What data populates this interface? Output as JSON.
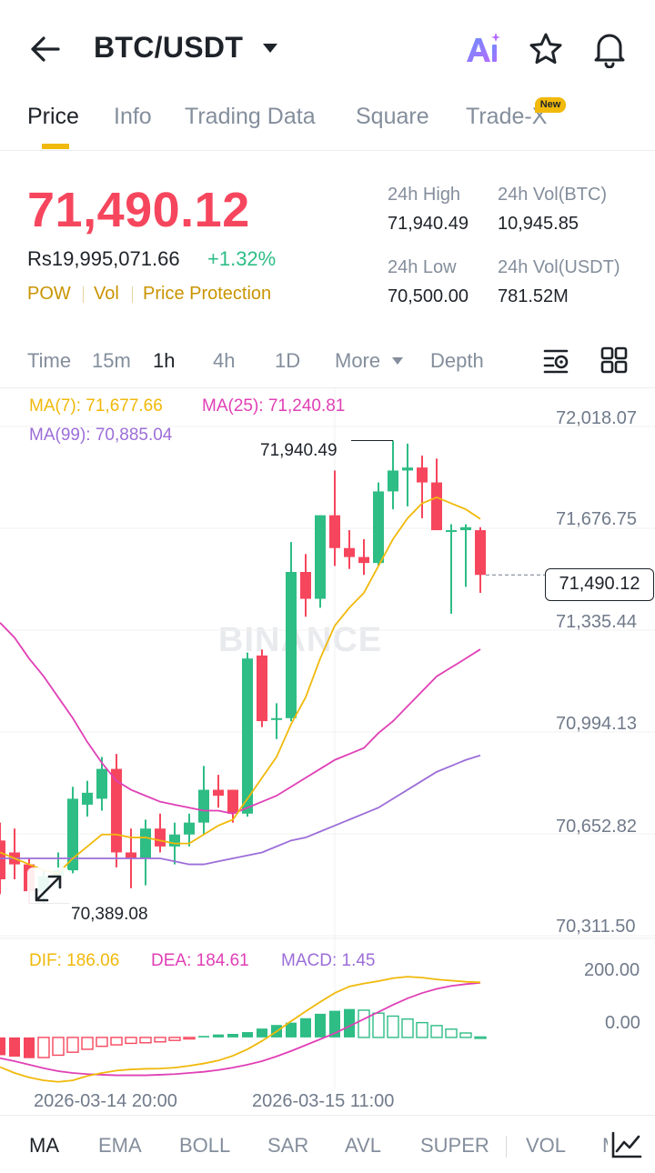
{
  "header": {
    "pair": "BTC/USDT",
    "icons": [
      "back-arrow-icon",
      "caret-down-icon",
      "ai-icon",
      "star-icon",
      "bell-icon"
    ]
  },
  "tabs": [
    {
      "label": "Price",
      "active": true
    },
    {
      "label": "Info"
    },
    {
      "label": "Trading Data"
    },
    {
      "label": "Square"
    },
    {
      "label": "Trade-X",
      "badge": "New"
    }
  ],
  "summary": {
    "last_price": "71,490.12",
    "fiat_price": "Rs19,995,071.66",
    "change": "+1.32%",
    "tags": [
      "POW",
      "Vol",
      "Price Protection"
    ],
    "high_label": "24h High",
    "high": "71,940.49",
    "vol_btc_label": "24h Vol(BTC)",
    "vol_btc": "10,945.85",
    "low_label": "24h Low",
    "low": "70,500.00",
    "vol_usdt_label": "24h Vol(USDT)",
    "vol_usdt": "781.52M"
  },
  "intervals": [
    {
      "label": "Time"
    },
    {
      "label": "15m"
    },
    {
      "label": "1h",
      "active": true
    },
    {
      "label": "4h"
    },
    {
      "label": "1D"
    },
    {
      "label": "More"
    },
    {
      "label": "Depth"
    }
  ],
  "ma_legend": {
    "ma7": "MA(7): 71,677.66",
    "ma25": "MA(25): 71,240.81",
    "ma99": "MA(99): 70,885.04"
  },
  "macd_legend": {
    "dif": "DIF: 186.06",
    "dea": "DEA: 184.61",
    "macd": "MACD: 1.45"
  },
  "price_axis": [
    "72,018.07",
    "71,676.75",
    "71,335.44",
    "70,994.13",
    "70,652.82",
    "70,311.50"
  ],
  "macd_axis": [
    "200.00",
    "0.00"
  ],
  "time_axis": [
    "2026-03-14 20:00",
    "2026-03-15 11:00"
  ],
  "current_price_label": "71,490.12",
  "max_label": "71,940.49",
  "min_label": "70,389.08",
  "watermark": "BINANCE",
  "indicators": [
    {
      "label": "MA",
      "active": true
    },
    {
      "label": "EMA"
    },
    {
      "label": "BOLL"
    },
    {
      "label": "SAR"
    },
    {
      "label": "AVL"
    },
    {
      "label": "SUPER"
    },
    {
      "label": "VOL"
    },
    {
      "label": "M"
    }
  ],
  "colors": {
    "up": "#2ebd85",
    "down": "#f6465d",
    "ma7": "#f0b90b",
    "ma25": "#e040b5",
    "ma99": "#9c6ed8",
    "accent": "#f0b90b"
  },
  "chart_data": {
    "type": "candlestick",
    "interval": "1h",
    "ylim": [
      70311.5,
      72018.07
    ],
    "candles": [
      {
        "o": 70600,
        "h": 70660,
        "l": 70420,
        "c": 70470
      },
      {
        "o": 70560,
        "h": 70640,
        "l": 70470,
        "c": 70520
      },
      {
        "o": 70520,
        "h": 70540,
        "l": 70389.08,
        "c": 70430
      },
      {
        "o": 70430,
        "h": 70500,
        "l": 70390,
        "c": 70480
      },
      {
        "o": 70480,
        "h": 70560,
        "l": 70440,
        "c": 70500
      },
      {
        "o": 70500,
        "h": 70780,
        "l": 70490,
        "c": 70740
      },
      {
        "o": 70720,
        "h": 70800,
        "l": 70680,
        "c": 70760
      },
      {
        "o": 70740,
        "h": 70880,
        "l": 70700,
        "c": 70840
      },
      {
        "o": 70840,
        "h": 70890,
        "l": 70510,
        "c": 70560
      },
      {
        "o": 70560,
        "h": 70640,
        "l": 70440,
        "c": 70540
      },
      {
        "o": 70540,
        "h": 70670,
        "l": 70450,
        "c": 70640
      },
      {
        "o": 70640,
        "h": 70690,
        "l": 70560,
        "c": 70580
      },
      {
        "o": 70580,
        "h": 70660,
        "l": 70520,
        "c": 70620
      },
      {
        "o": 70620,
        "h": 70690,
        "l": 70580,
        "c": 70660
      },
      {
        "o": 70660,
        "h": 70850,
        "l": 70620,
        "c": 70770
      },
      {
        "o": 70770,
        "h": 70820,
        "l": 70710,
        "c": 70750
      },
      {
        "o": 70770,
        "h": 70770,
        "l": 70660,
        "c": 70690
      },
      {
        "o": 70690,
        "h": 71230,
        "l": 70680,
        "c": 71210
      },
      {
        "o": 71220,
        "h": 71240,
        "l": 70980,
        "c": 71000
      },
      {
        "o": 71010,
        "h": 71060,
        "l": 70940,
        "c": 71010
      },
      {
        "o": 71010,
        "h": 71600,
        "l": 71000,
        "c": 71500
      },
      {
        "o": 71500,
        "h": 71560,
        "l": 71350,
        "c": 71410
      },
      {
        "o": 71410,
        "h": 71690,
        "l": 71380,
        "c": 71690
      },
      {
        "o": 71690,
        "h": 71840,
        "l": 71520,
        "c": 71580
      },
      {
        "o": 71580,
        "h": 71640,
        "l": 71510,
        "c": 71550
      },
      {
        "o": 71550,
        "h": 71610,
        "l": 71490,
        "c": 71530
      },
      {
        "o": 71530,
        "h": 71800,
        "l": 71520,
        "c": 71770
      },
      {
        "o": 71770,
        "h": 71940.49,
        "l": 71710,
        "c": 71840
      },
      {
        "o": 71840,
        "h": 71930,
        "l": 71720,
        "c": 71850
      },
      {
        "o": 71850,
        "h": 71890,
        "l": 71680,
        "c": 71800
      },
      {
        "o": 71800,
        "h": 71880,
        "l": 71640,
        "c": 71640
      },
      {
        "o": 71640,
        "h": 71660,
        "l": 71360,
        "c": 71640
      },
      {
        "o": 71640,
        "h": 71660,
        "l": 71450,
        "c": 71650
      },
      {
        "o": 71640,
        "h": 71650,
        "l": 71430,
        "c": 71490.12
      }
    ],
    "ma7": [
      70560,
      70540,
      70520,
      70500,
      70490,
      70540,
      70580,
      70620,
      70620,
      70610,
      70610,
      70600,
      70590,
      70590,
      70620,
      70650,
      70670,
      70740,
      70810,
      70880,
      70990,
      71080,
      71210,
      71320,
      71380,
      71430,
      71520,
      71610,
      71680,
      71730,
      71750,
      71730,
      71710,
      71677.66
    ],
    "ma25": [
      71330,
      71280,
      71210,
      71150,
      71080,
      71010,
      70930,
      70860,
      70800,
      70770,
      70750,
      70730,
      70720,
      70710,
      70700,
      70700,
      70690,
      70710,
      70730,
      70750,
      70780,
      70810,
      70840,
      70870,
      70890,
      70910,
      70960,
      71000,
      71050,
      71100,
      71150,
      71180,
      71210,
      71240.81
    ],
    "ma99": [
      70540,
      70540,
      70540,
      70540,
      70540,
      70540,
      70540,
      70540,
      70540,
      70540,
      70540,
      70540,
      70530,
      70520,
      70520,
      70530,
      70540,
      70550,
      70560,
      70580,
      70600,
      70610,
      70630,
      70650,
      70670,
      70690,
      70710,
      70740,
      70770,
      70800,
      70830,
      70850,
      70870,
      70885.04
    ],
    "macd_ylim": [
      -160,
      270
    ],
    "macd_hist": [
      -60,
      -65,
      -70,
      -68,
      -60,
      -50,
      -40,
      -30,
      -25,
      -20,
      -18,
      -15,
      -10,
      -5,
      5,
      10,
      12,
      18,
      30,
      42,
      50,
      65,
      80,
      90,
      96,
      92,
      82,
      72,
      62,
      50,
      40,
      28,
      15,
      1.45
    ],
    "dif": [
      -100,
      -120,
      -135,
      -145,
      -150,
      -145,
      -130,
      -120,
      -112,
      -108,
      -106,
      -105,
      -102,
      -96,
      -88,
      -78,
      -62,
      -40,
      -12,
      20,
      55,
      88,
      120,
      150,
      172,
      182,
      190,
      200,
      205,
      202,
      196,
      192,
      188,
      186.06
    ],
    "dea": [
      -70,
      -80,
      -92,
      -104,
      -114,
      -120,
      -124,
      -126,
      -128,
      -128,
      -128,
      -126,
      -124,
      -120,
      -116,
      -110,
      -102,
      -92,
      -80,
      -64,
      -46,
      -26,
      -6,
      14,
      38,
      62,
      86,
      110,
      132,
      150,
      164,
      174,
      180,
      184.61
    ]
  }
}
